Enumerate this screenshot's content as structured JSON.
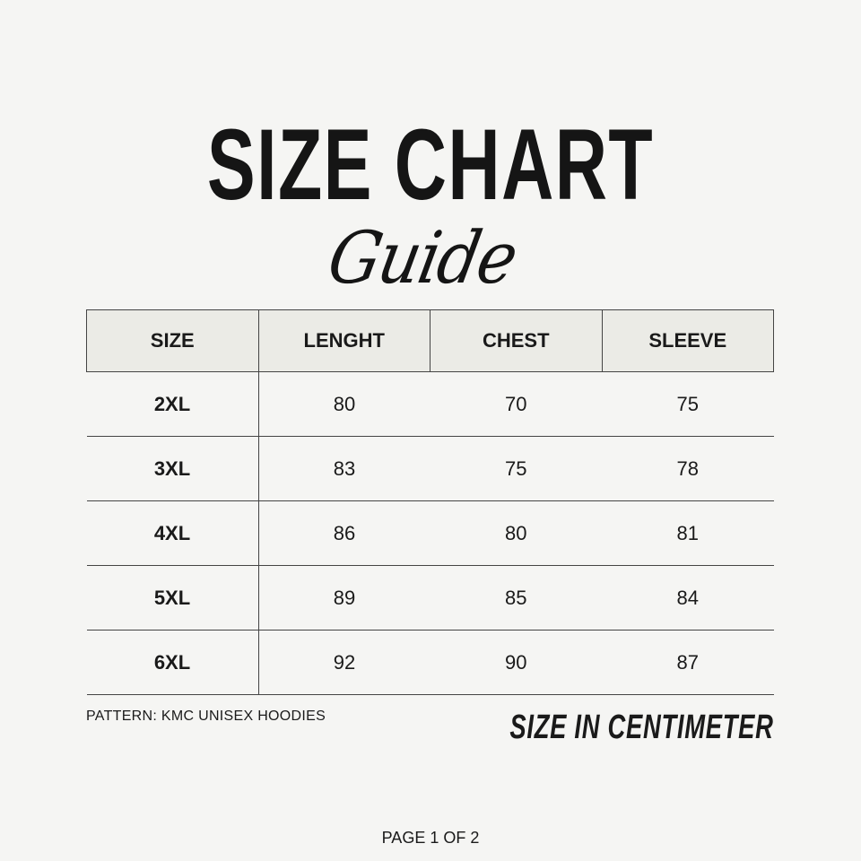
{
  "title": "SIZE CHART",
  "subtitle": "Guide",
  "table": {
    "headers": [
      "SIZE",
      "LENGHT",
      "CHEST",
      "SLEEVE"
    ],
    "rows": [
      [
        "2XL",
        "80",
        "70",
        "75"
      ],
      [
        "3XL",
        "83",
        "75",
        "78"
      ],
      [
        "4XL",
        "86",
        "80",
        "81"
      ],
      [
        "5XL",
        "89",
        "85",
        "84"
      ],
      [
        "6XL",
        "92",
        "90",
        "87"
      ]
    ]
  },
  "pattern": "PATTERN: KMC UNISEX HOODIES",
  "unit_note": "SIZE IN CENTIMETER",
  "page": "PAGE 1 OF 2"
}
